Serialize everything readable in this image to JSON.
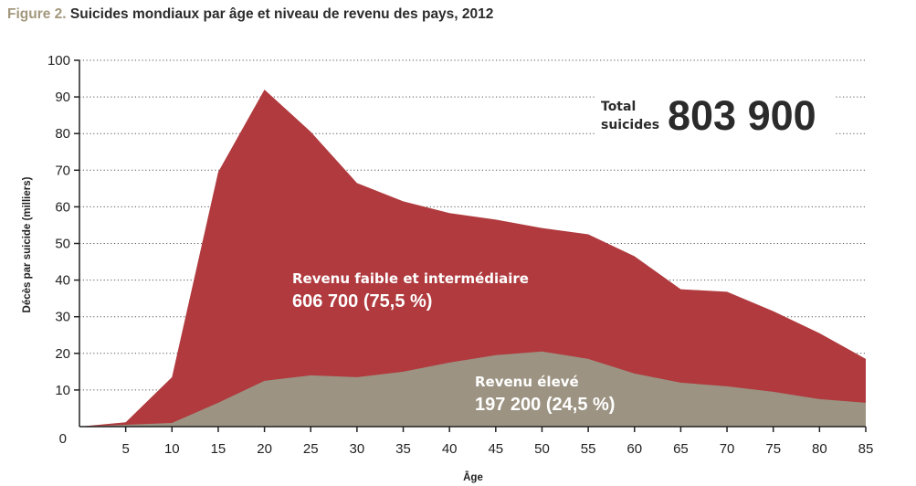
{
  "title": {
    "figure_label": "Figure 2.",
    "text": "Suicides mondiaux par âge et niveau de revenu des pays, 2012"
  },
  "colors": {
    "low_middle": "#b03a3e",
    "high": "#9c9382",
    "grid": "#555555",
    "figure_label": "#a3987c"
  },
  "annotations": {
    "total_label_line1": "Total",
    "total_label_line2": "suicides",
    "total_value": "803 900",
    "low_middle_label": "Revenu faible et intermédiaire",
    "low_middle_value": "606 700 (75,5 %)",
    "high_label": "Revenu élevé",
    "high_value": "197 200 (24,5 %)"
  },
  "chart_data": {
    "type": "area",
    "stacked": true,
    "xlabel": "Âge",
    "ylabel": "Décès par suicide (milliers)",
    "xlim": [
      0,
      85
    ],
    "ylim": [
      0,
      100
    ],
    "x_ticks": [
      5,
      10,
      15,
      20,
      25,
      30,
      35,
      40,
      45,
      50,
      55,
      60,
      65,
      70,
      75,
      80,
      85
    ],
    "y_ticks": [
      0,
      10,
      20,
      30,
      40,
      50,
      60,
      70,
      80,
      90,
      100
    ],
    "grid": "horizontal-dotted",
    "x": [
      0,
      5,
      10,
      15,
      20,
      25,
      30,
      35,
      40,
      45,
      50,
      55,
      60,
      65,
      70,
      75,
      80,
      85
    ],
    "series": [
      {
        "name": "Revenu élevé",
        "values": [
          0,
          0.5,
          1,
          6.5,
          12.5,
          14,
          13.5,
          15,
          17.5,
          19.5,
          20.5,
          18.5,
          14.5,
          12,
          11,
          9.5,
          7.5,
          6.5
        ]
      },
      {
        "name": "Revenu faible et intermédiaire",
        "values": [
          0,
          0.7,
          12.5,
          63,
          79.5,
          66.5,
          53,
          46.5,
          40.8,
          37,
          33.7,
          34,
          32,
          25.5,
          25.8,
          22,
          18,
          12
        ]
      }
    ]
  }
}
